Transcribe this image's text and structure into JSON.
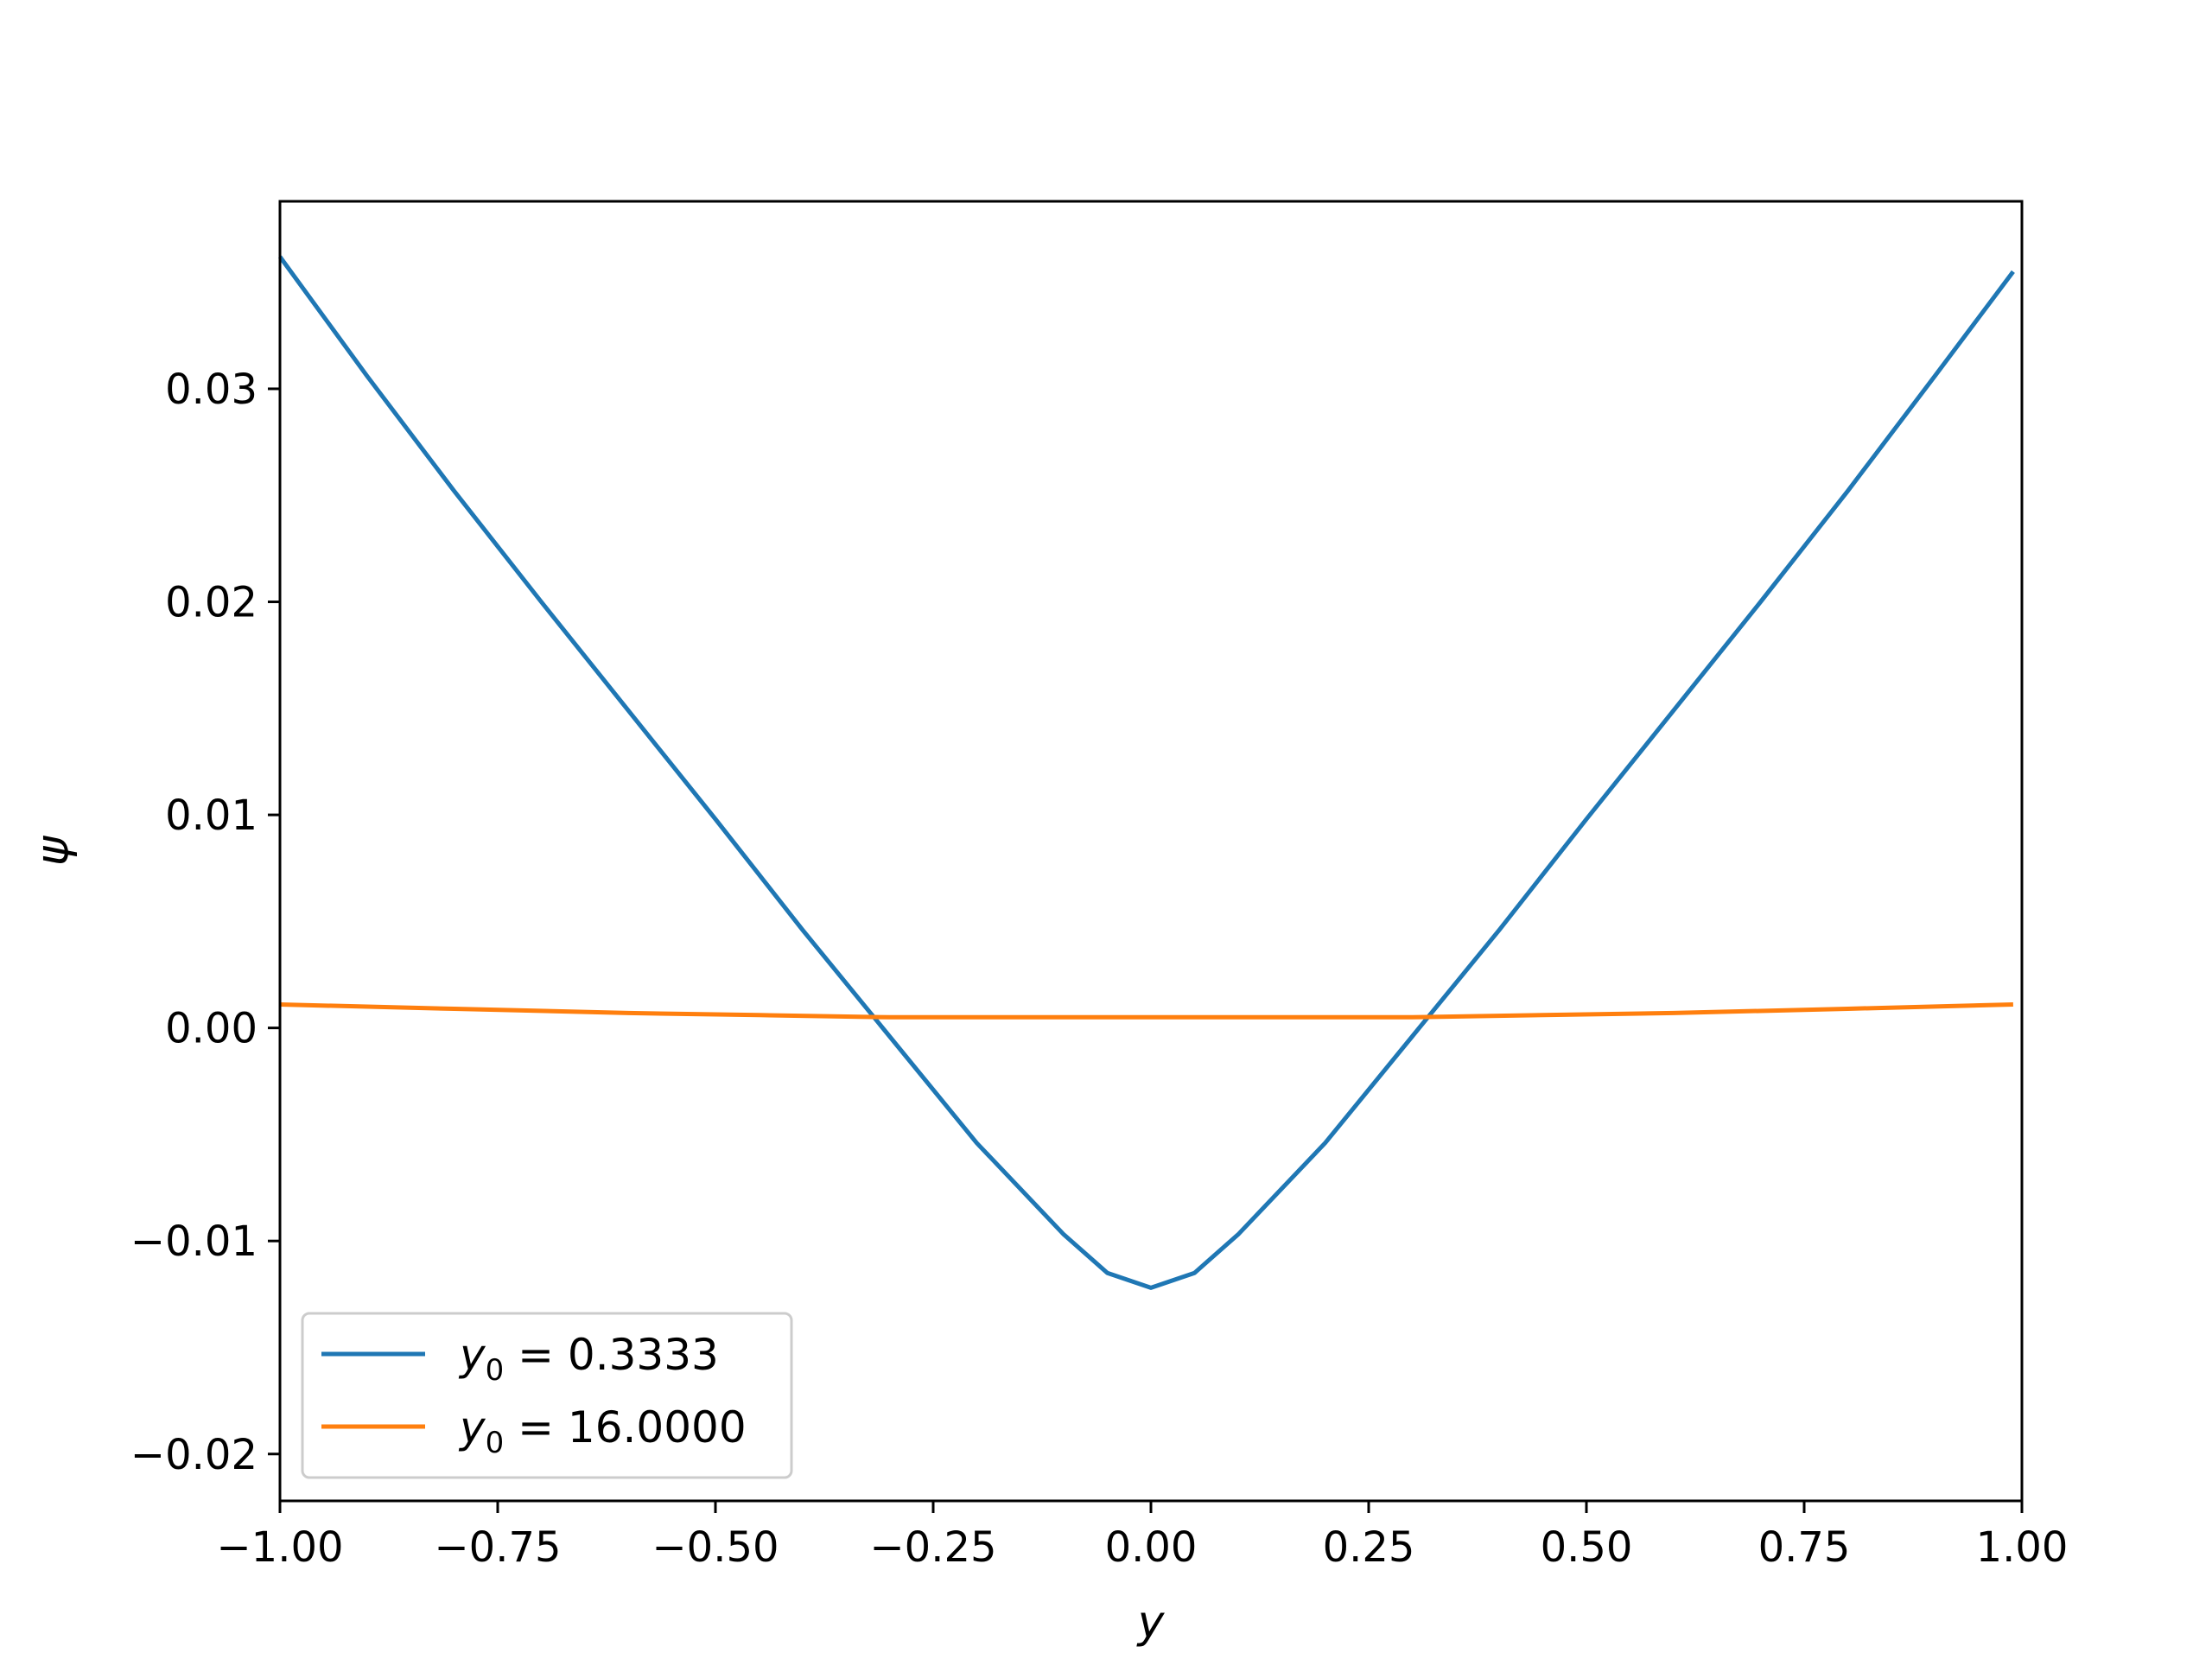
{
  "chart_data": {
    "type": "line",
    "title": "",
    "xlabel": "y",
    "ylabel": "ψ",
    "xlim": [
      -1.0,
      1.0
    ],
    "ylim": [
      -0.0222,
      0.0388
    ],
    "x_ticks": [
      -1.0,
      -0.75,
      -0.5,
      -0.25,
      0.0,
      0.25,
      0.5,
      0.75,
      1.0
    ],
    "x_tick_labels": [
      "−1.00",
      "−0.75",
      "−0.50",
      "−0.25",
      "0.00",
      "0.25",
      "0.50",
      "0.75",
      "1.00"
    ],
    "y_ticks": [
      -0.02,
      -0.01,
      0.0,
      0.01,
      0.02,
      0.03
    ],
    "y_tick_labels": [
      "−0.02",
      "−0.01",
      "0.00",
      "0.01",
      "0.02",
      "0.03"
    ],
    "grid": false,
    "legend_position": "lower-left",
    "series": [
      {
        "name": "y0 = 0.3333",
        "legend_base": "y",
        "legend_sub": "0",
        "legend_value": " = 0.3333",
        "color": "#1f77b4",
        "x": [
          -1.0,
          -0.9,
          -0.8,
          -0.7,
          -0.6,
          -0.5,
          -0.45,
          -0.4,
          -0.3,
          -0.2,
          -0.1,
          -0.05,
          0.0,
          0.05,
          0.1,
          0.2,
          0.3,
          0.4,
          0.45,
          0.5,
          0.6,
          0.7,
          0.8,
          0.9,
          0.99
        ],
        "y": [
          0.0362,
          0.0306,
          0.0252,
          0.02,
          0.0149,
          0.0098,
          0.0072,
          0.0046,
          -0.0004,
          -0.0054,
          -0.0097,
          -0.0115,
          -0.0122,
          -0.0115,
          -0.0097,
          -0.0054,
          -0.0004,
          0.0046,
          0.0072,
          0.0098,
          0.0149,
          0.02,
          0.0252,
          0.0306,
          0.0355
        ]
      },
      {
        "name": "y0 = 16.0000",
        "legend_base": "y",
        "legend_sub": "0",
        "legend_value": " = 16.0000",
        "color": "#ff7f0e",
        "x": [
          -1.0,
          -0.8,
          -0.6,
          -0.45,
          -0.3,
          -0.15,
          0.0,
          0.15,
          0.3,
          0.45,
          0.6,
          0.8,
          0.99
        ],
        "y": [
          0.0011,
          0.0009,
          0.0007,
          0.0006,
          0.0005,
          0.0005,
          0.0005,
          0.0005,
          0.0005,
          0.0006,
          0.0007,
          0.0009,
          0.0011
        ]
      }
    ]
  }
}
